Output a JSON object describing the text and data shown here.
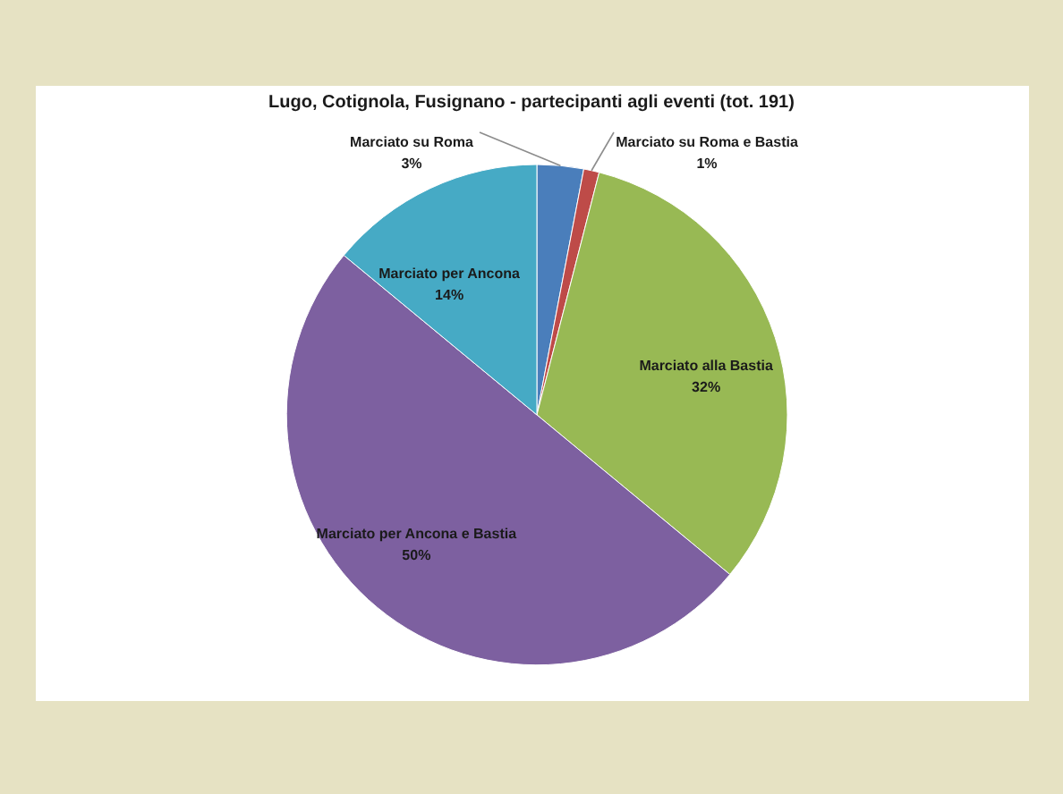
{
  "chart_data": {
    "type": "pie",
    "title": "Lugo, Cotignola, Fusignano - partecipanti agli eventi (tot. 191)",
    "categories": [
      "Marciato su Roma",
      "Marciato su Roma e Bastia",
      "Marciato alla Bastia",
      "Marciato per Ancona e Bastia",
      "Marciato per Ancona"
    ],
    "values": [
      3,
      1,
      32,
      50,
      14
    ],
    "value_labels": [
      "3%",
      "1%",
      "32%",
      "50%",
      "14%"
    ],
    "colors": [
      "#4a7ebb",
      "#be4b48",
      "#98b954",
      "#7d60a0",
      "#46aac5"
    ],
    "legend": false
  }
}
